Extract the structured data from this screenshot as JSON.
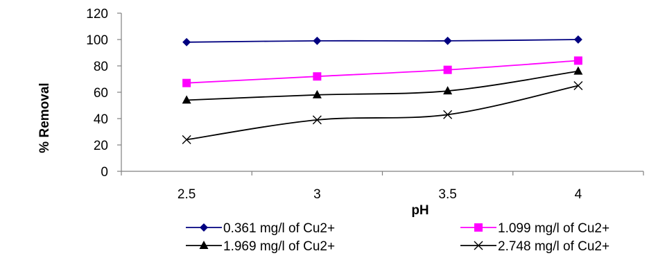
{
  "chart_data": {
    "type": "line",
    "title": "",
    "xlabel": "pH",
    "ylabel": "% Removal",
    "categories": [
      "2.5",
      "3",
      "3.5",
      "4"
    ],
    "ylim": [
      0,
      120
    ],
    "yticks": [
      "0",
      "20",
      "40",
      "60",
      "80",
      "100",
      "120"
    ],
    "grid": false,
    "legend_position": "bottom",
    "series": [
      {
        "name": "0.361 mg/l of Cu2+",
        "values": [
          98,
          99,
          99,
          100
        ],
        "color": "#000080",
        "marker": "diamond"
      },
      {
        "name": "1.099 mg/l of Cu2+",
        "values": [
          67,
          72,
          77,
          84
        ],
        "color": "#FF00FF",
        "marker": "square"
      },
      {
        "name": "1.969 mg/l of Cu2+",
        "values": [
          54,
          58,
          61,
          76
        ],
        "color": "#000000",
        "marker": "triangle"
      },
      {
        "name": "2.748 mg/l of Cu2+",
        "values": [
          24,
          39,
          43,
          65
        ],
        "color": "#000000",
        "marker": "x"
      }
    ]
  }
}
